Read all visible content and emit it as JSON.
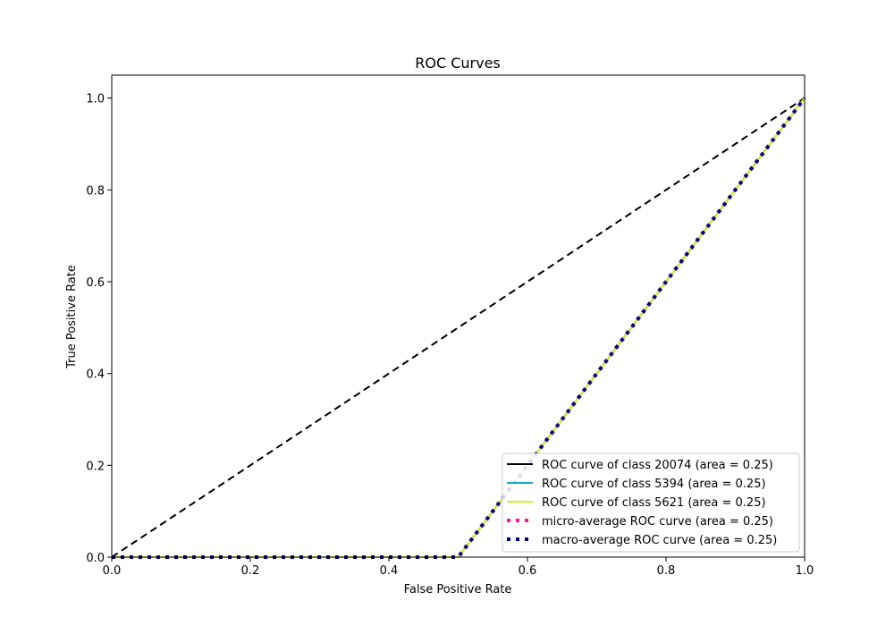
{
  "chart_data": {
    "type": "line",
    "title": "ROC Curves",
    "xlabel": "False Positive Rate",
    "ylabel": "True Positive Rate",
    "xlim": [
      0.0,
      1.0
    ],
    "ylim": [
      0.0,
      1.05
    ],
    "xticks": [
      0.0,
      0.2,
      0.4,
      0.6,
      0.8,
      1.0
    ],
    "yticks": [
      0.0,
      0.2,
      0.4,
      0.6,
      0.8,
      1.0
    ],
    "xtick_labels": [
      "0.0",
      "0.2",
      "0.4",
      "0.6",
      "0.8",
      "1.0"
    ],
    "ytick_labels": [
      "0.0",
      "0.2",
      "0.4",
      "0.6",
      "0.8",
      "1.0"
    ],
    "grid": false,
    "legend_position": "lower-right",
    "series": [
      {
        "name": "ROC curve of class 20074 (area = 0.25)",
        "color": "#000000",
        "style": "solid",
        "x": [
          0.0,
          0.5,
          1.0
        ],
        "y": [
          0.0,
          0.0,
          1.0
        ]
      },
      {
        "name": "ROC curve of class 5394 (area = 0.25)",
        "color": "#17a9c4",
        "style": "solid",
        "x": [
          0.0,
          0.5,
          1.0
        ],
        "y": [
          0.0,
          0.0,
          1.0
        ]
      },
      {
        "name": "ROC curve of class 5621 (area = 0.25)",
        "color": "#d4f21a",
        "style": "solid",
        "x": [
          0.0,
          0.5,
          1.0
        ],
        "y": [
          0.0,
          0.0,
          1.0
        ]
      },
      {
        "name": "micro-average ROC curve (area = 0.25)",
        "color": "#ff1493",
        "style": "dotted",
        "x": [
          0.0,
          0.5,
          1.0
        ],
        "y": [
          0.0,
          0.0,
          1.0
        ]
      },
      {
        "name": "macro-average ROC curve (area = 0.25)",
        "color": "#000080",
        "style": "dotted",
        "x": [
          0.0,
          0.5,
          1.0
        ],
        "y": [
          0.0,
          0.0,
          1.0
        ]
      }
    ],
    "reference_line": {
      "color": "#000000",
      "style": "dashed",
      "x": [
        0.0,
        1.0
      ],
      "y": [
        0.0,
        1.0
      ]
    }
  }
}
